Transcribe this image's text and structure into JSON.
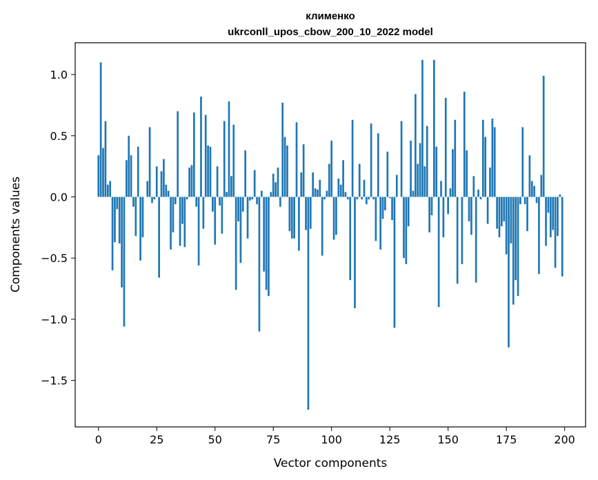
{
  "chart_data": {
    "type": "bar",
    "title": "клименко",
    "subtitle": "ukrconll_upos_cbow_200_10_2022 model",
    "xlabel": "Vector components",
    "ylabel": "Components values",
    "xlim": [
      -10,
      209
    ],
    "ylim": [
      -1.88,
      1.26
    ],
    "xticks": [
      0,
      25,
      50,
      75,
      100,
      125,
      150,
      175,
      200
    ],
    "yticks": [
      -1.5,
      -1.0,
      -0.5,
      0.0,
      0.5,
      1.0
    ],
    "ytick_labels": [
      "−1.5",
      "−1.0",
      "−0.5",
      "0.0",
      "0.5",
      "1.0"
    ],
    "bar_color": "#1f77b4",
    "grid": false,
    "x": [
      0,
      1,
      2,
      3,
      4,
      5,
      6,
      7,
      8,
      9,
      10,
      11,
      12,
      13,
      14,
      15,
      16,
      17,
      18,
      19,
      20,
      21,
      22,
      23,
      24,
      25,
      26,
      27,
      28,
      29,
      30,
      31,
      32,
      33,
      34,
      35,
      36,
      37,
      38,
      39,
      40,
      41,
      42,
      43,
      44,
      45,
      46,
      47,
      48,
      49,
      50,
      51,
      52,
      53,
      54,
      55,
      56,
      57,
      58,
      59,
      60,
      61,
      62,
      63,
      64,
      65,
      66,
      67,
      68,
      69,
      70,
      71,
      72,
      73,
      74,
      75,
      76,
      77,
      78,
      79,
      80,
      81,
      82,
      83,
      84,
      85,
      86,
      87,
      88,
      89,
      90,
      91,
      92,
      93,
      94,
      95,
      96,
      97,
      98,
      99,
      100,
      101,
      102,
      103,
      104,
      105,
      106,
      107,
      108,
      109,
      110,
      111,
      112,
      113,
      114,
      115,
      116,
      117,
      118,
      119,
      120,
      121,
      122,
      123,
      124,
      125,
      126,
      127,
      128,
      129,
      130,
      131,
      132,
      133,
      134,
      135,
      136,
      137,
      138,
      139,
      140,
      141,
      142,
      143,
      144,
      145,
      146,
      147,
      148,
      149,
      150,
      151,
      152,
      153,
      154,
      155,
      156,
      157,
      158,
      159,
      160,
      161,
      162,
      163,
      164,
      165,
      166,
      167,
      168,
      169,
      170,
      171,
      172,
      173,
      174,
      175,
      176,
      177,
      178,
      179,
      180,
      181,
      182,
      183,
      184,
      185,
      186,
      187,
      188,
      189,
      190,
      191,
      192,
      193,
      194,
      195,
      196,
      197,
      198,
      199
    ],
    "values": [
      0.34,
      1.1,
      0.4,
      0.62,
      0.1,
      0.13,
      -0.6,
      -0.37,
      -0.1,
      -0.38,
      -0.74,
      -1.06,
      0.3,
      0.5,
      0.34,
      -0.08,
      -0.32,
      0.41,
      -0.52,
      -0.33,
      0.0,
      0.13,
      0.57,
      -0.05,
      -0.02,
      0.25,
      -0.66,
      0.21,
      0.31,
      0.1,
      0.05,
      -0.43,
      -0.29,
      -0.06,
      0.7,
      -0.4,
      -0.22,
      -0.41,
      -0.02,
      0.24,
      0.26,
      0.69,
      -0.08,
      -0.56,
      0.82,
      -0.26,
      0.67,
      0.42,
      0.41,
      -0.12,
      -0.39,
      0.25,
      -0.07,
      -0.3,
      0.62,
      0.04,
      0.78,
      0.17,
      0.59,
      -0.76,
      -0.2,
      -0.54,
      -0.12,
      0.38,
      -0.34,
      -0.03,
      -0.02,
      0.22,
      -0.06,
      -1.1,
      0.05,
      -0.61,
      -0.76,
      -0.81,
      0.04,
      0.19,
      0.12,
      0.24,
      -0.08,
      0.77,
      0.49,
      0.42,
      -0.28,
      -0.34,
      -0.34,
      0.61,
      -0.44,
      0.2,
      0.43,
      -0.27,
      -1.74,
      -0.26,
      0.2,
      0.07,
      0.06,
      0.14,
      -0.48,
      -0.02,
      0.05,
      0.27,
      0.46,
      -0.35,
      -0.31,
      0.15,
      0.1,
      0.3,
      0.04,
      -0.02,
      -0.68,
      0.63,
      -0.91,
      -0.02,
      0.27,
      -0.02,
      0.14,
      -0.06,
      -0.02,
      0.6,
      -0.02,
      -0.36,
      0.52,
      -0.43,
      -0.18,
      -0.11,
      0.37,
      -0.01,
      -0.19,
      -1.07,
      0.18,
      0.0,
      0.62,
      -0.5,
      -0.55,
      -0.24,
      0.46,
      0.05,
      0.84,
      0.27,
      0.44,
      1.12,
      0.25,
      0.58,
      -0.29,
      -0.15,
      1.12,
      0.41,
      -0.9,
      0.13,
      -0.33,
      0.81,
      -0.14,
      0.07,
      0.39,
      0.63,
      -0.71,
      0.0,
      -0.55,
      0.86,
      0.38,
      -0.2,
      -0.31,
      0.17,
      -0.7,
      0.06,
      -0.02,
      0.63,
      0.49,
      -0.22,
      0.24,
      0.64,
      0.57,
      -0.26,
      -0.33,
      -0.24,
      -0.2,
      -0.47,
      -1.23,
      -0.38,
      -0.88,
      -0.68,
      -0.81,
      -0.06,
      0.57,
      -0.06,
      -0.28,
      0.34,
      0.13,
      0.09,
      -0.05,
      -0.63,
      0.18,
      0.99,
      -0.4,
      -0.13,
      -0.33,
      -0.27,
      -0.58,
      -0.32,
      0.02,
      -0.65
    ]
  }
}
